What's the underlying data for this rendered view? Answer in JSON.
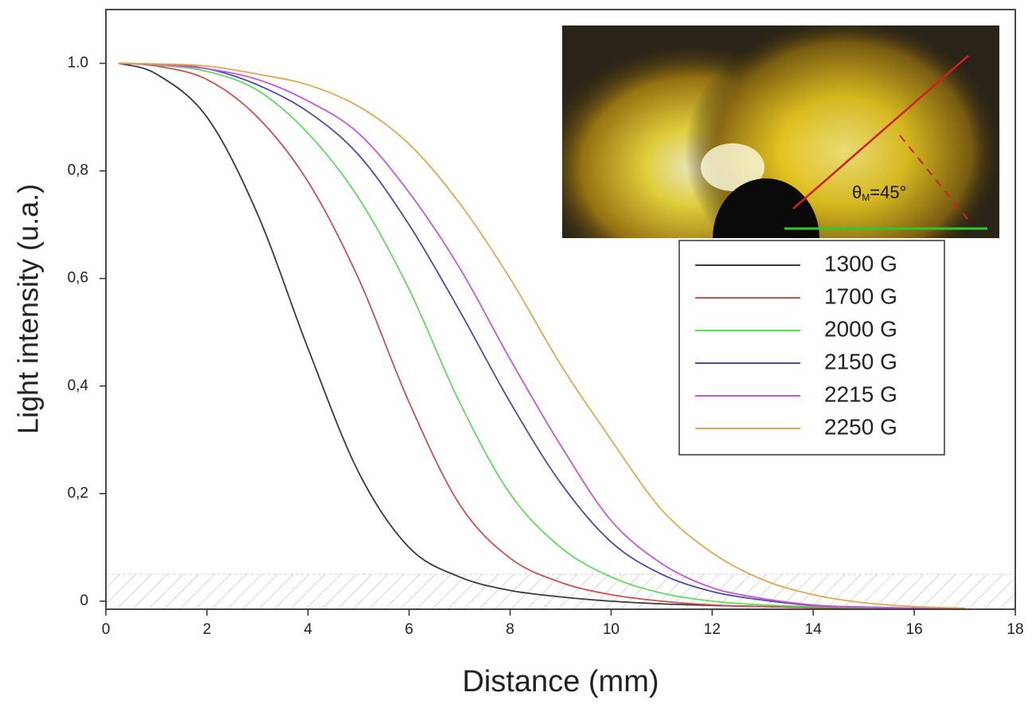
{
  "chart_data": {
    "type": "line",
    "x_label": "Distance (mm)",
    "y_label": "Light intensity (u.a.)",
    "xlim": [
      0,
      18
    ],
    "ylim": [
      -0.015,
      1.1
    ],
    "xticks": [
      0,
      2,
      4,
      6,
      8,
      10,
      12,
      14,
      16,
      18
    ],
    "yticks": [
      0,
      {
        "value": 0.2,
        "label": "0,2"
      },
      {
        "value": 0.4,
        "label": "0,4"
      },
      {
        "value": 0.6,
        "label": "0,6"
      },
      {
        "value": 0.8,
        "label": "0,8"
      },
      {
        "value": 1,
        "label": "1.0"
      }
    ],
    "shaded_band": [
      -0.015,
      0.05
    ],
    "inset_annotation": {
      "symbol": "θ",
      "subscript": "M",
      "text": "=45°"
    },
    "legend": "upper right",
    "x": [
      0.25,
      1,
      2,
      3,
      4,
      5,
      6,
      7,
      8,
      9,
      10,
      11,
      12,
      13,
      14,
      15,
      16,
      17
    ],
    "series": [
      {
        "name": "1300 G",
        "color": "#3a3a3a",
        "values": [
          1,
          0.98,
          0.9,
          0.72,
          0.47,
          0.24,
          0.1,
          0.045,
          0.02,
          0.008,
          0.0,
          -0.005,
          -0.008,
          -0.01,
          -0.012,
          -0.013,
          -0.014,
          -0.014
        ]
      },
      {
        "name": "1700 G",
        "color": "#cc5050",
        "values": [
          1,
          0.995,
          0.97,
          0.9,
          0.78,
          0.6,
          0.37,
          0.18,
          0.08,
          0.035,
          0.012,
          0.0,
          -0.007,
          -0.01,
          -0.012,
          -0.013,
          -0.014,
          -0.014
        ]
      },
      {
        "name": "2000 G",
        "color": "#5fdc5f",
        "values": [
          1,
          0.997,
          0.985,
          0.95,
          0.87,
          0.75,
          0.58,
          0.37,
          0.2,
          0.1,
          0.045,
          0.015,
          0.0,
          -0.007,
          -0.01,
          -0.012,
          -0.013,
          -0.014
        ]
      },
      {
        "name": "2150 G",
        "color": "#4a4aa8",
        "values": [
          1,
          0.998,
          0.99,
          0.96,
          0.91,
          0.83,
          0.7,
          0.54,
          0.37,
          0.22,
          0.11,
          0.05,
          0.018,
          0.002,
          -0.008,
          -0.011,
          -0.013,
          -0.014
        ]
      },
      {
        "name": "2215 G",
        "color": "#c855dc",
        "values": [
          1,
          0.998,
          0.99,
          0.97,
          0.93,
          0.87,
          0.76,
          0.62,
          0.45,
          0.29,
          0.15,
          0.07,
          0.025,
          0.005,
          -0.007,
          -0.011,
          -0.013,
          -0.014
        ]
      },
      {
        "name": "2250 G",
        "color": "#e0a850",
        "values": [
          1,
          0.999,
          0.995,
          0.98,
          0.96,
          0.92,
          0.85,
          0.74,
          0.6,
          0.44,
          0.3,
          0.17,
          0.09,
          0.04,
          0.012,
          -0.003,
          -0.01,
          -0.013
        ]
      }
    ]
  }
}
